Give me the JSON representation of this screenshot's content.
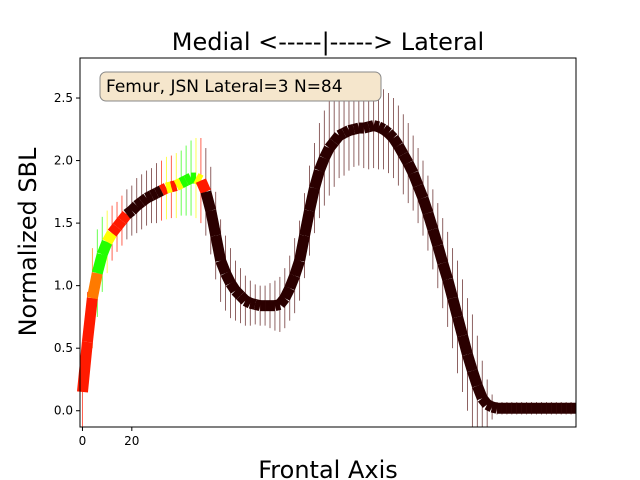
{
  "chart_data": {
    "type": "line",
    "title": "Medial <-----|-----> Lateral",
    "xlabel": "Frontal Axis",
    "ylabel": "Normalized SBL",
    "xlim": [
      -1,
      200
    ],
    "ylim": [
      -0.13,
      2.82
    ],
    "xticks": [
      0,
      20
    ],
    "yticks": [
      0.0,
      0.5,
      1.0,
      1.5,
      2.0,
      2.5
    ],
    "annotation": "Femur, JSN Lateral=3 N=84",
    "legend": [],
    "colors": {
      "maroon": "#2b0000",
      "red": "#ff1a00",
      "orange": "#ff7a00",
      "yellow": "#ffff00",
      "green": "#22ff00",
      "whisker": "#5a1a1a",
      "annotation_bg": "#f5e6cc",
      "annotation_border": "#888888"
    },
    "x": [
      0,
      2,
      4,
      6,
      8,
      10,
      12,
      14,
      16,
      18,
      20,
      22,
      24,
      26,
      28,
      30,
      32,
      34,
      36,
      38,
      40,
      42,
      44,
      46,
      48,
      50,
      52,
      54,
      56,
      58,
      60,
      62,
      64,
      66,
      68,
      70,
      72,
      74,
      76,
      78,
      80,
      82,
      84,
      86,
      88,
      90,
      92,
      94,
      96,
      98,
      100,
      102,
      104,
      106,
      108,
      110,
      112,
      114,
      116,
      118,
      120,
      122,
      124,
      126,
      128,
      130,
      132,
      134,
      136,
      138,
      140,
      142,
      144,
      146,
      148,
      150,
      152,
      154,
      156,
      158,
      160,
      162,
      164,
      166,
      168,
      170,
      172,
      174,
      176,
      178,
      180,
      182,
      184,
      186,
      188,
      190,
      192,
      194,
      196,
      198,
      200
    ],
    "mean": [
      0.15,
      0.55,
      0.9,
      1.1,
      1.25,
      1.35,
      1.42,
      1.47,
      1.52,
      1.57,
      1.6,
      1.64,
      1.67,
      1.7,
      1.72,
      1.74,
      1.76,
      1.78,
      1.79,
      1.8,
      1.82,
      1.84,
      1.86,
      1.86,
      1.84,
      1.75,
      1.6,
      1.4,
      1.2,
      1.1,
      1.02,
      0.96,
      0.92,
      0.88,
      0.86,
      0.85,
      0.84,
      0.84,
      0.84,
      0.84,
      0.85,
      0.9,
      0.98,
      1.08,
      1.2,
      1.4,
      1.6,
      1.78,
      1.92,
      2.02,
      2.1,
      2.15,
      2.2,
      2.22,
      2.24,
      2.25,
      2.26,
      2.26,
      2.27,
      2.28,
      2.27,
      2.25,
      2.22,
      2.18,
      2.12,
      2.05,
      1.98,
      1.9,
      1.8,
      1.7,
      1.58,
      1.45,
      1.32,
      1.18,
      1.05,
      0.9,
      0.75,
      0.6,
      0.45,
      0.32,
      0.2,
      0.1,
      0.05,
      0.03,
      0.02,
      0.02,
      0.02,
      0.02,
      0.02,
      0.02,
      0.02,
      0.02,
      0.02,
      0.02,
      0.02,
      0.02,
      0.02,
      0.02,
      0.02,
      0.02,
      0.02
    ],
    "error": [
      0.35,
      0.4,
      0.4,
      0.35,
      0.3,
      0.25,
      0.22,
      0.2,
      0.2,
      0.2,
      0.2,
      0.22,
      0.22,
      0.22,
      0.22,
      0.24,
      0.24,
      0.25,
      0.25,
      0.26,
      0.26,
      0.28,
      0.3,
      0.32,
      0.34,
      0.35,
      0.35,
      0.35,
      0.33,
      0.3,
      0.28,
      0.24,
      0.22,
      0.2,
      0.18,
      0.16,
      0.16,
      0.16,
      0.18,
      0.2,
      0.22,
      0.24,
      0.26,
      0.3,
      0.32,
      0.34,
      0.36,
      0.36,
      0.38,
      0.38,
      0.38,
      0.36,
      0.34,
      0.34,
      0.32,
      0.3,
      0.3,
      0.32,
      0.34,
      0.34,
      0.34,
      0.32,
      0.32,
      0.32,
      0.32,
      0.32,
      0.32,
      0.3,
      0.3,
      0.3,
      0.3,
      0.32,
      0.34,
      0.36,
      0.38,
      0.4,
      0.45,
      0.45,
      0.45,
      0.45,
      0.4,
      0.3,
      0.2,
      0.1,
      0.05,
      0.05,
      0.05,
      0.05,
      0.05,
      0.05,
      0.05,
      0.05,
      0.05,
      0.05,
      0.05,
      0.05,
      0.05,
      0.05,
      0.05,
      0.05,
      0.05
    ],
    "color_index": [
      1,
      1,
      2,
      4,
      4,
      3,
      1,
      1,
      1,
      0,
      0,
      0,
      0,
      0,
      0,
      0,
      1,
      3,
      1,
      3,
      4,
      4,
      4,
      3,
      1,
      0,
      0,
      0,
      0,
      0,
      0,
      0,
      0,
      0,
      0,
      0,
      0,
      0,
      0,
      0,
      0,
      0,
      0,
      0,
      0,
      0,
      0,
      0,
      0,
      0,
      0,
      0,
      0,
      0,
      0,
      0,
      0,
      0,
      0,
      0,
      0,
      0,
      0,
      0,
      0,
      0,
      0,
      0,
      0,
      0,
      0,
      0,
      0,
      0,
      0,
      0,
      0,
      0,
      0,
      0,
      0,
      0,
      0,
      0,
      0,
      0,
      0,
      0,
      0,
      0,
      0,
      0,
      0,
      0,
      0,
      0,
      0,
      0,
      0,
      0,
      0
    ]
  }
}
